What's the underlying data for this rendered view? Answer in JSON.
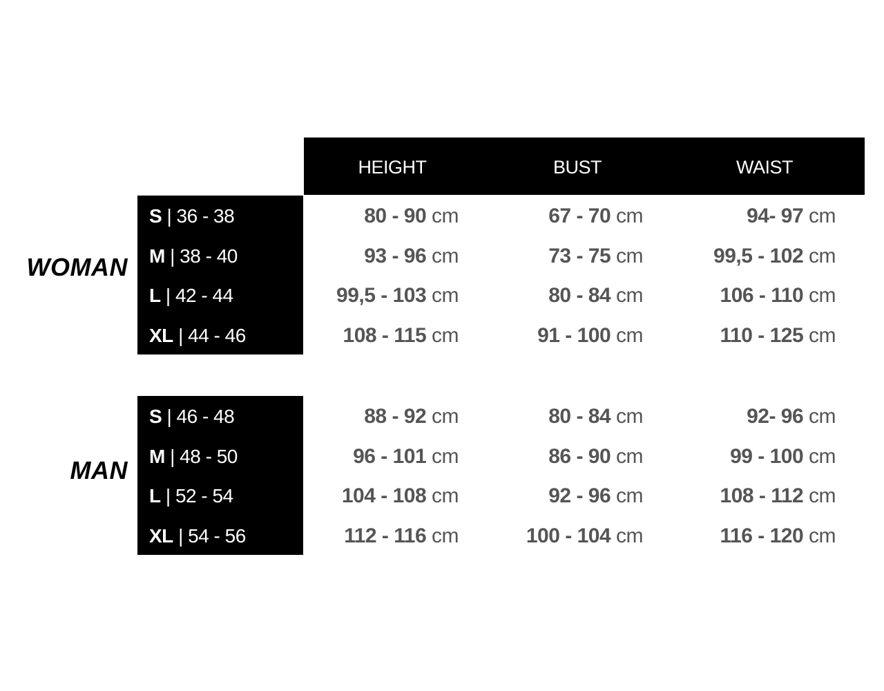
{
  "headers": [
    "HEIGHT",
    "BUST",
    "WAIST"
  ],
  "unit": "cm",
  "groups": [
    {
      "label": "WOMAN",
      "rows": [
        {
          "size": "S",
          "eu": "36 - 38",
          "height": "80 - 90",
          "bust": "67 - 70",
          "waist": "94- 97"
        },
        {
          "size": "M",
          "eu": "38 - 40",
          "height": "93 - 96",
          "bust": "73 - 75",
          "waist": "99,5 - 102"
        },
        {
          "size": "L",
          "eu": "42 - 44",
          "height": "99,5 - 103",
          "bust": "80 - 84",
          "waist": "106 - 110"
        },
        {
          "size": "XL",
          "eu": "44 - 46",
          "height": "108 - 115",
          "bust": "91 - 100",
          "waist": "110 - 125"
        }
      ]
    },
    {
      "label": "MAN",
      "rows": [
        {
          "size": "S",
          "eu": "46 - 48",
          "height": "88 - 92",
          "bust": "80 - 84",
          "waist": "92- 96"
        },
        {
          "size": "M",
          "eu": "48 - 50",
          "height": "96 - 101",
          "bust": "86 - 90",
          "waist": "99 - 100"
        },
        {
          "size": "L",
          "eu": "52 - 54",
          "height": "104 - 108",
          "bust": "92 - 96",
          "waist": "108 - 112"
        },
        {
          "size": "XL",
          "eu": "54 - 56",
          "height": "112 - 116",
          "bust": "100 - 104",
          "waist": "116 - 120"
        }
      ]
    }
  ]
}
